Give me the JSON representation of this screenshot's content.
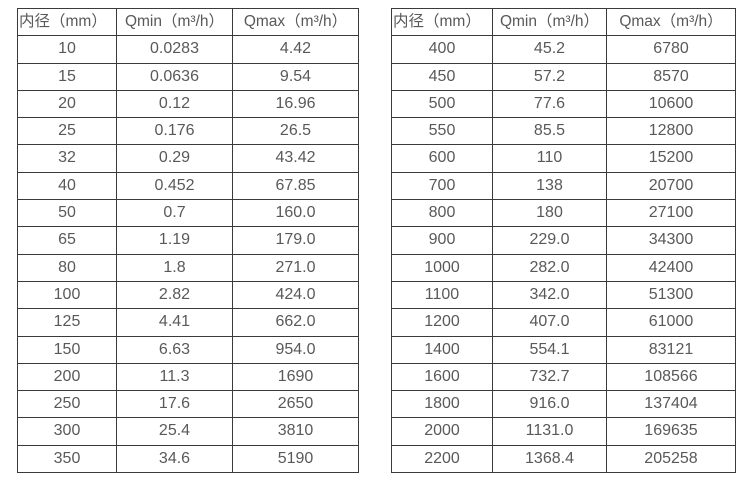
{
  "page": {
    "background_color": "#ffffff",
    "border_color": "#3a3a3a",
    "text_color": "#595959"
  },
  "tables": [
    {
      "name": "flow-spec-small-diameters",
      "headers": [
        "内径（mm）",
        "Qmin（m³/h）",
        "Qmax（m³/h）"
      ],
      "rows": [
        [
          "10",
          "0.0283",
          "4.42"
        ],
        [
          "15",
          "0.0636",
          "9.54"
        ],
        [
          "20",
          "0.12",
          "16.96"
        ],
        [
          "25",
          "0.176",
          "26.5"
        ],
        [
          "32",
          "0.29",
          "43.42"
        ],
        [
          "40",
          "0.452",
          "67.85"
        ],
        [
          "50",
          "0.7",
          "160.0"
        ],
        [
          "65",
          "1.19",
          "179.0"
        ],
        [
          "80",
          "1.8",
          "271.0"
        ],
        [
          "100",
          "2.82",
          "424.0"
        ],
        [
          "125",
          "4.41",
          "662.0"
        ],
        [
          "150",
          "6.63",
          "954.0"
        ],
        [
          "200",
          "11.3",
          "1690"
        ],
        [
          "250",
          "17.6",
          "2650"
        ],
        [
          "300",
          "25.4",
          "3810"
        ],
        [
          "350",
          "34.6",
          "5190"
        ]
      ]
    },
    {
      "name": "flow-spec-large-diameters",
      "headers": [
        "内径（mm）",
        "Qmin（m³/h）",
        "Qmax（m³/h）"
      ],
      "rows": [
        [
          "400",
          "45.2",
          "6780"
        ],
        [
          "450",
          "57.2",
          "8570"
        ],
        [
          "500",
          "77.6",
          "10600"
        ],
        [
          "550",
          "85.5",
          "12800"
        ],
        [
          "600",
          "110",
          "15200"
        ],
        [
          "700",
          "138",
          "20700"
        ],
        [
          "800",
          "180",
          "27100"
        ],
        [
          "900",
          "229.0",
          "34300"
        ],
        [
          "1000",
          "282.0",
          "42400"
        ],
        [
          "1100",
          "342.0",
          "51300"
        ],
        [
          "1200",
          "407.0",
          "61000"
        ],
        [
          "1400",
          "554.1",
          "83121"
        ],
        [
          "1600",
          "732.7",
          "108566"
        ],
        [
          "1800",
          "916.0",
          "137404"
        ],
        [
          "2000",
          "1131.0",
          "169635"
        ],
        [
          "2200",
          "1368.4",
          "205258"
        ]
      ]
    }
  ]
}
